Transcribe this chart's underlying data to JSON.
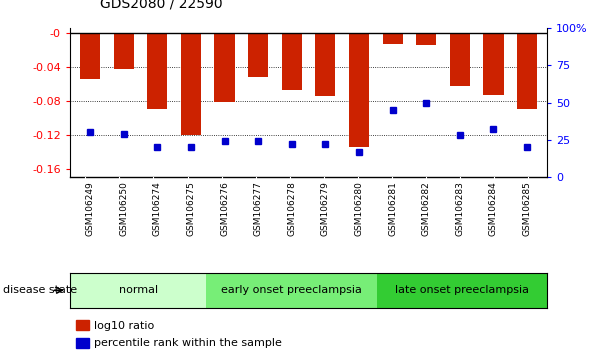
{
  "title": "GDS2080 / 22590",
  "samples": [
    "GSM106249",
    "GSM106250",
    "GSM106274",
    "GSM106275",
    "GSM106276",
    "GSM106277",
    "GSM106278",
    "GSM106279",
    "GSM106280",
    "GSM106281",
    "GSM106282",
    "GSM106283",
    "GSM106284",
    "GSM106285"
  ],
  "log10_ratio": [
    -0.055,
    -0.043,
    -0.09,
    -0.12,
    -0.082,
    -0.052,
    -0.068,
    -0.075,
    -0.135,
    -0.013,
    -0.015,
    -0.063,
    -0.073,
    -0.09
  ],
  "percentile_rank": [
    30,
    29,
    20,
    20,
    24,
    24,
    22,
    22,
    17,
    45,
    50,
    28,
    32,
    20
  ],
  "ylim_left": [
    -0.17,
    0.005
  ],
  "ylim_right": [
    0,
    100
  ],
  "groups": [
    {
      "label": "normal",
      "start": 0,
      "end": 4,
      "color": "#ccffcc"
    },
    {
      "label": "early onset preeclampsia",
      "start": 4,
      "end": 9,
      "color": "#77ee77"
    },
    {
      "label": "late onset preeclampsia",
      "start": 9,
      "end": 14,
      "color": "#33cc33"
    }
  ],
  "bar_color": "#cc2200",
  "percentile_color": "#0000cc",
  "yticks_left": [
    0,
    -0.04,
    -0.08,
    -0.12,
    -0.16
  ],
  "yticks_right": [
    0,
    25,
    50,
    75,
    100
  ],
  "disease_state_label": "disease state",
  "legend_log10": "log10 ratio",
  "legend_percentile": "percentile rank within the sample",
  "bar_width": 0.6
}
